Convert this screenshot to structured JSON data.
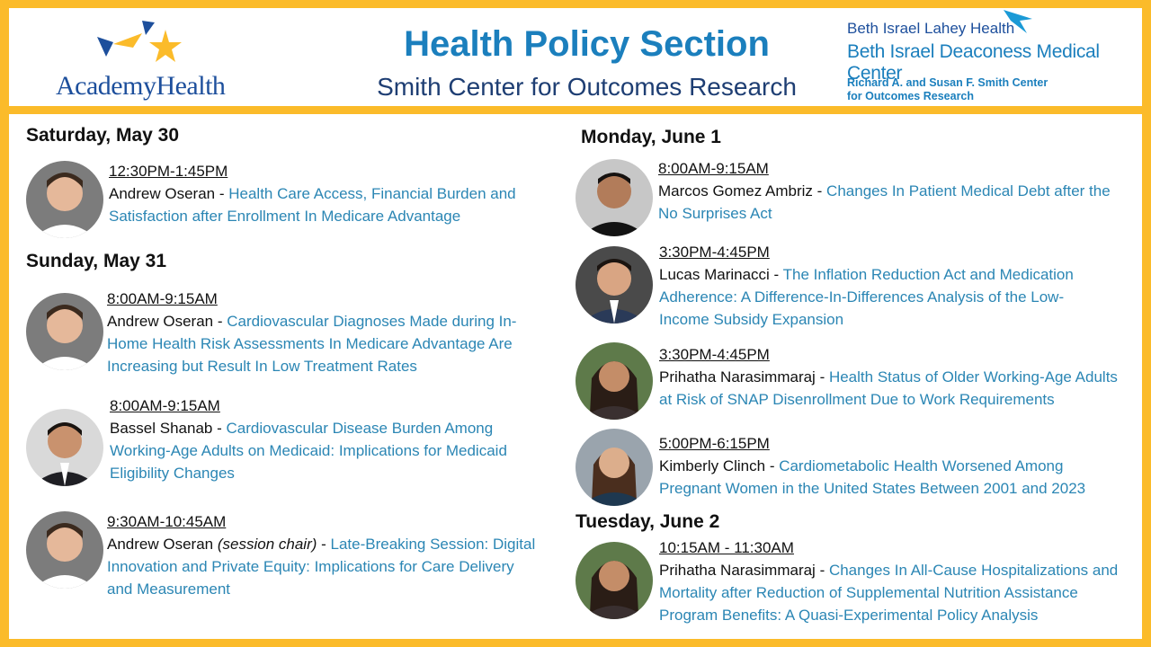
{
  "header": {
    "left_logo_text": "AcademyHealth",
    "title": "Health Policy Section",
    "subtitle": "Smith Center for Outcomes Research",
    "right_logo": {
      "line1": "Beth Israel Lahey Health",
      "line2": "Beth Israel Deaconess Medical Center",
      "line3": "Richard A. and Susan F. Smith Center",
      "line4": "for Outcomes Research"
    }
  },
  "days": {
    "sat": "Saturday, May 30",
    "sun": "Sunday, May 31",
    "mon": "Monday, June 1",
    "tue": "Tuesday, June 2"
  },
  "sessions": {
    "s1": {
      "time": "12:30PM-1:45PM",
      "speaker": "Andrew Oseran",
      "sep": " - ",
      "talk": "Health Care Access, Financial Burden and Satisfaction after Enrollment In Medicare Advantage"
    },
    "s2": {
      "time": "8:00AM-9:15AM",
      "speaker": "Andrew Oseran",
      "sep": " - ",
      "talk": "Cardiovascular Diagnoses Made during In-Home Health Risk Assessments In Medicare Advantage Are Increasing but Result In Low Treatment Rates"
    },
    "s3": {
      "time": "8:00AM-9:15AM",
      "speaker": "Bassel Shanab",
      "sep": " - ",
      "talk": "Cardiovascular Disease Burden Among Working-Age Adults on Medicaid: Implications for Medicaid Eligibility Changes"
    },
    "s4": {
      "time": "9:30AM-10:45AM",
      "speaker": "Andrew Oseran",
      "role": "(session chair)",
      "sep": " - ",
      "talk": "Late-Breaking Session: Digital Innovation and Private Equity: Implications for Care Delivery and Measurement"
    },
    "s5": {
      "time": "8:00AM-9:15AM",
      "speaker": "Marcos Gomez Ambriz",
      "sep": " - ",
      "talk": "Changes In Patient Medical Debt after the No Surprises Act"
    },
    "s6": {
      "time": "3:30PM-4:45PM",
      "speaker": "Lucas Marinacci",
      "sep": " - ",
      "talk": "The Inflation Reduction Act and Medication Adherence: A Difference-In-Differences Analysis of the Low-Income Subsidy Expansion"
    },
    "s7": {
      "time": "3:30PM-4:45PM",
      "speaker": "Prihatha Narasimmaraj",
      "sep": " - ",
      "talk": "Health Status of Older Working-Age Adults at Risk of SNAP Disenrollment Due to Work Requirements"
    },
    "s8": {
      "time": "5:00PM-6:15PM",
      "speaker": "Kimberly Clinch",
      "sep": " - ",
      "talk": "Cardiometabolic Health Worsened Among Pregnant Women in the United States Between 2001 and 2023"
    },
    "s9": {
      "time": "10:15AM - 11:30AM",
      "speaker": "Prihatha Narasimmaraj",
      "sep": " - ",
      "talk": "Changes In All-Cause Hospitalizations and Mortality after Reduction of Supplemental Nutrition Assistance Program Benefits: A Quasi-Experimental Policy Analysis"
    }
  },
  "colors": {
    "frame": "#fbbb2a",
    "title": "#1b7fbd",
    "subtitle": "#1e3e73",
    "talk_link": "#2b86b4"
  }
}
